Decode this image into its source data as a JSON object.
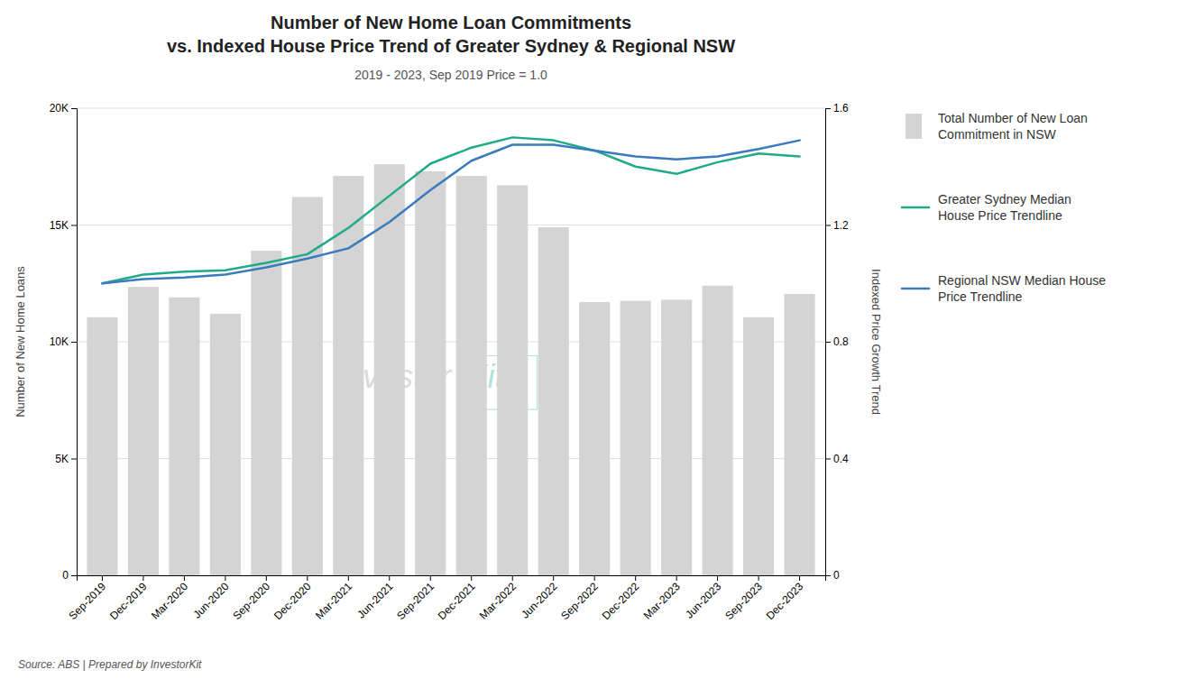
{
  "chart_data": {
    "type": "bar",
    "title": "Number of New Home Loan Commitments\nvs. Indexed House Price Trend of Greater Sydney & Regional NSW",
    "subtitle": "2019 - 2023, Sep 2019 Price = 1.0",
    "ylabel": "Number of New Home Loans",
    "y2label": "Indexed Price Growth Trend",
    "source": "Source: ABS | Prepared by InvestorKit",
    "annotations": [
      "Investor",
      "Kit"
    ],
    "categories": [
      "Sep-2019",
      "Dec-2019",
      "Mar-2020",
      "Jun-2020",
      "Sep-2020",
      "Dec-2020",
      "Mar-2021",
      "Jun-2021",
      "Sep-2021",
      "Dec-2021",
      "Mar-2022",
      "Jun-2022",
      "Sep-2022",
      "Dec-2022",
      "Mar-2023",
      "Jun-2023",
      "Sep-2023",
      "Dec-2023"
    ],
    "series": [
      {
        "name": "Total Number of New Loan\nCommitment in NSW",
        "type": "bar",
        "color": "#d4d4d4",
        "values": [
          11050,
          12350,
          11900,
          11200,
          13900,
          16200,
          17100,
          17600,
          17300,
          17100,
          16700,
          14900,
          11700,
          11750,
          11800,
          12400,
          11050,
          12050
        ]
      },
      {
        "name": "Greater Sydney Median\nHouse Price Trendline",
        "type": "line",
        "color": "#1faa8a",
        "axis": "y2",
        "values": [
          1.0,
          1.03,
          1.04,
          1.045,
          1.07,
          1.1,
          1.19,
          1.3,
          1.41,
          1.465,
          1.5,
          1.49,
          1.455,
          1.4,
          1.375,
          1.415,
          1.445,
          1.435
        ]
      },
      {
        "name": "Regional NSW Median House\nPrice Trendline",
        "type": "line",
        "color": "#3a7bbf",
        "axis": "y2",
        "values": [
          1.0,
          1.015,
          1.02,
          1.03,
          1.055,
          1.085,
          1.12,
          1.21,
          1.32,
          1.42,
          1.475,
          1.475,
          1.455,
          1.435,
          1.425,
          1.435,
          1.46,
          1.49
        ]
      }
    ],
    "ylim": [
      0,
      20000
    ],
    "yticks": [
      0,
      {
        "value": 5000,
        "label": "5K"
      },
      {
        "value": 10000,
        "label": "10K"
      },
      {
        "value": 15000,
        "label": "15K"
      },
      {
        "value": 20000,
        "label": "20K"
      }
    ],
    "y2lim": [
      0,
      1.6
    ],
    "y2ticks": [
      0,
      0.4,
      0.8,
      1.2,
      1.6
    ],
    "grid": true,
    "legend": "right"
  }
}
